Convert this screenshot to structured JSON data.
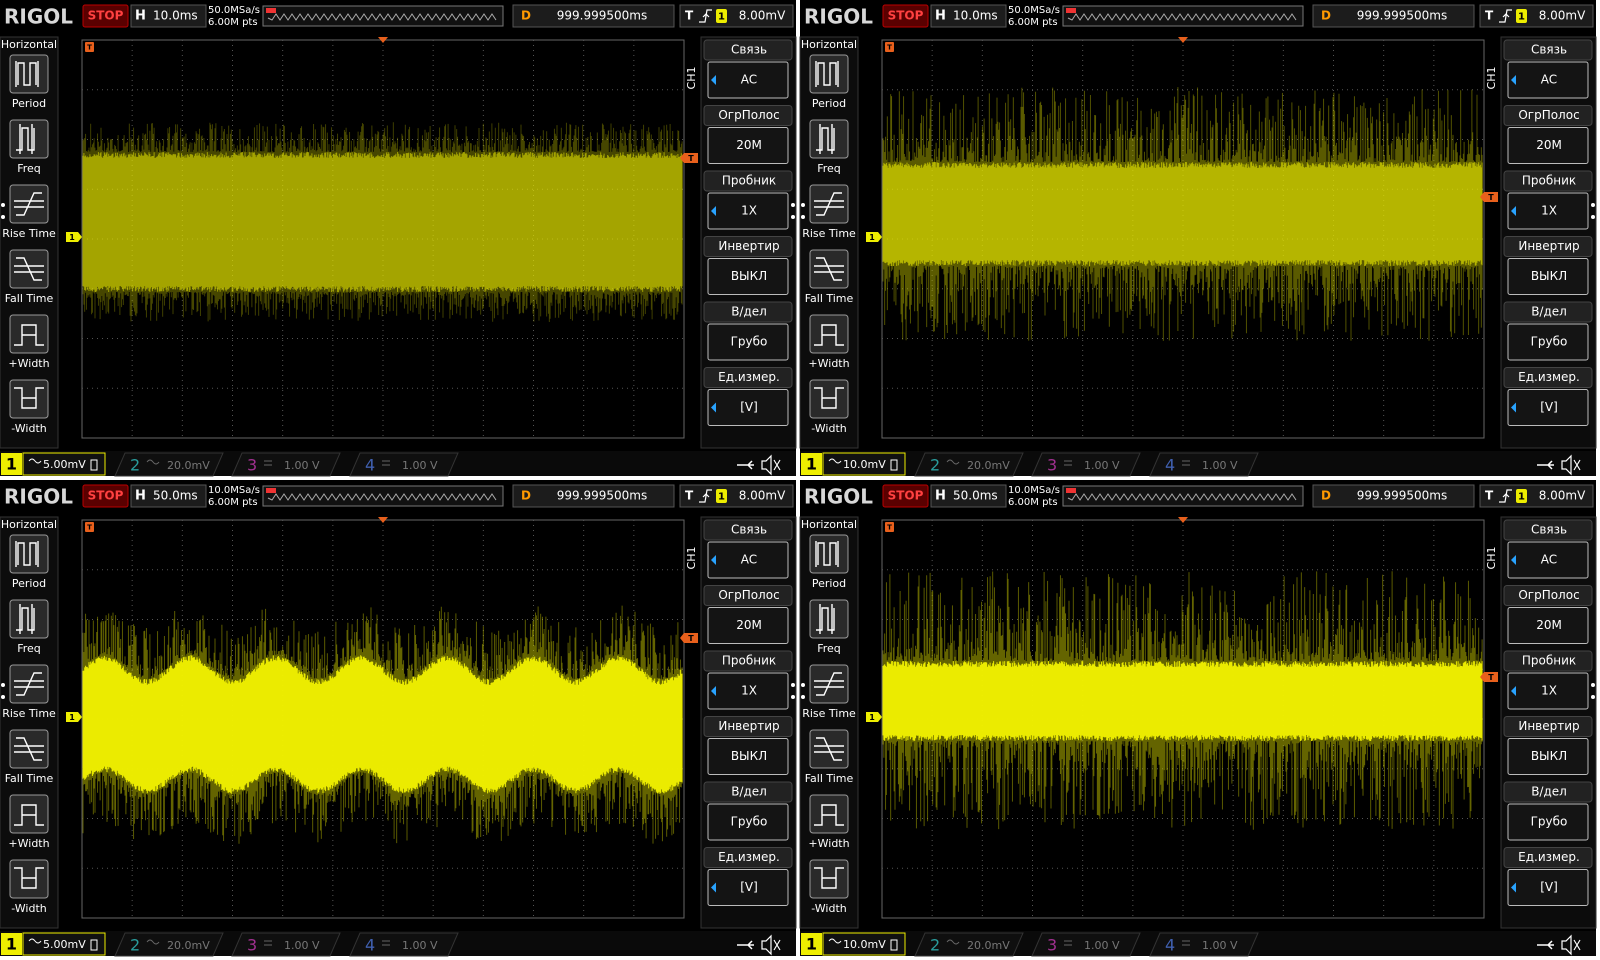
{
  "panels": [
    {
      "brand": "RIGOL",
      "status": "STOP",
      "timebase_label": "H",
      "timebase": "10.0ms",
      "sample_rate": "50.0MSa/s",
      "points": "6.00M pts",
      "delay_label": "D",
      "delay": "999.999500ms",
      "trigger_label": "T",
      "trigger_channel": "1",
      "trigger_level": "8.00mV",
      "left_menu": {
        "title": "Horizontal",
        "items": [
          "Period",
          "Freq",
          "Rise Time",
          "Fall Time",
          "+Width",
          "-Width"
        ]
      },
      "channel_label": "CH1",
      "right_menu": [
        {
          "title": "Связь",
          "value": "AC"
        },
        {
          "title": "ОгрПолос",
          "value": "20M"
        },
        {
          "title": "Пробник",
          "value": "1X"
        },
        {
          "title": "Инвертир",
          "value": "ВЫКЛ"
        },
        {
          "title": "В/дел",
          "value": "Грубо"
        },
        {
          "title": "Ед.измер.",
          "value": "[V]"
        }
      ],
      "channels": [
        {
          "number": "1",
          "scale": "5.00mV"
        },
        {
          "number": "2",
          "scale": "20.0mV"
        },
        {
          "number": "3",
          "scale": "1.00 V"
        },
        {
          "number": "4",
          "scale": "1.00 V"
        }
      ]
    },
    {
      "brand": "RIGOL",
      "status": "STOP",
      "timebase_label": "H",
      "timebase": "10.0ms",
      "sample_rate": "50.0MSa/s",
      "points": "6.00M pts",
      "delay_label": "D",
      "delay": "999.999500ms",
      "trigger_label": "T",
      "trigger_channel": "1",
      "trigger_level": "8.00mV",
      "left_menu": {
        "title": "Horizontal",
        "items": [
          "Period",
          "Freq",
          "Rise Time",
          "Fall Time",
          "+Width",
          "-Width"
        ]
      },
      "channel_label": "CH1",
      "right_menu": [
        {
          "title": "Связь",
          "value": "AC"
        },
        {
          "title": "ОгрПолос",
          "value": "20M"
        },
        {
          "title": "Пробник",
          "value": "1X"
        },
        {
          "title": "Инвертир",
          "value": "ВЫКЛ"
        },
        {
          "title": "В/дел",
          "value": "Грубо"
        },
        {
          "title": "Ед.измер.",
          "value": "[V]"
        }
      ],
      "channels": [
        {
          "number": "1",
          "scale": "10.0mV"
        },
        {
          "number": "2",
          "scale": "20.0mV"
        },
        {
          "number": "3",
          "scale": "1.00 V"
        },
        {
          "number": "4",
          "scale": "1.00 V"
        }
      ]
    },
    {
      "brand": "RIGOL",
      "status": "STOP",
      "timebase_label": "H",
      "timebase": "50.0ms",
      "sample_rate": "10.0MSa/s",
      "points": "6.00M pts",
      "delay_label": "D",
      "delay": "999.999500ms",
      "trigger_label": "T",
      "trigger_channel": "1",
      "trigger_level": "8.00mV",
      "left_menu": {
        "title": "Horizontal",
        "items": [
          "Period",
          "Freq",
          "Rise Time",
          "Fall Time",
          "+Width",
          "-Width"
        ]
      },
      "channel_label": "CH1",
      "right_menu": [
        {
          "title": "Связь",
          "value": "AC"
        },
        {
          "title": "ОгрПолос",
          "value": "20M"
        },
        {
          "title": "Пробник",
          "value": "1X"
        },
        {
          "title": "Инвертир",
          "value": "ВЫКЛ"
        },
        {
          "title": "В/дел",
          "value": "Грубо"
        },
        {
          "title": "Ед.измер.",
          "value": "[V]"
        }
      ],
      "channels": [
        {
          "number": "1",
          "scale": "5.00mV"
        },
        {
          "number": "2",
          "scale": "20.0mV"
        },
        {
          "number": "3",
          "scale": "1.00 V"
        },
        {
          "number": "4",
          "scale": "1.00 V"
        }
      ]
    },
    {
      "brand": "RIGOL",
      "status": "STOP",
      "timebase_label": "H",
      "timebase": "50.0ms",
      "sample_rate": "10.0MSa/s",
      "points": "6.00M pts",
      "delay_label": "D",
      "delay": "999.999500ms",
      "trigger_label": "T",
      "trigger_channel": "1",
      "trigger_level": "8.00mV",
      "left_menu": {
        "title": "Horizontal",
        "items": [
          "Period",
          "Freq",
          "Rise Time",
          "Fall Time",
          "+Width",
          "-Width"
        ]
      },
      "channel_label": "CH1",
      "right_menu": [
        {
          "title": "Связь",
          "value": "AC"
        },
        {
          "title": "ОгрПолос",
          "value": "20M"
        },
        {
          "title": "Пробник",
          "value": "1X"
        },
        {
          "title": "Инвертир",
          "value": "ВЫКЛ"
        },
        {
          "title": "В/дел",
          "value": "Грубо"
        },
        {
          "title": "Ед.измер.",
          "value": "[V]"
        }
      ],
      "channels": [
        {
          "number": "1",
          "scale": "10.0mV"
        },
        {
          "number": "2",
          "scale": "20.0mV"
        },
        {
          "number": "3",
          "scale": "1.00 V"
        },
        {
          "number": "4",
          "scale": "1.00 V"
        }
      ]
    }
  ]
}
